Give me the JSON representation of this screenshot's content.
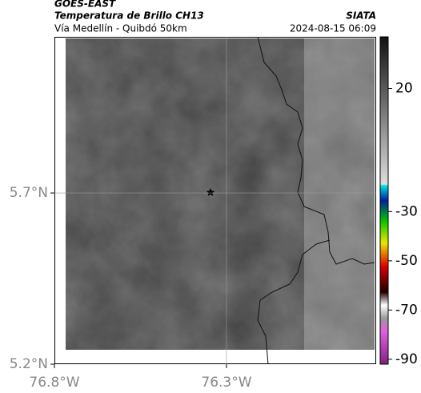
{
  "header": {
    "title": "GOES-EAST",
    "subtitle": "Temperatura de Brillo CH13",
    "region": "Vía Medellín - Quibdó 50km",
    "source": "SIATA",
    "datetime": "2024-08-15 06:09"
  },
  "map": {
    "lonlim": [
      -76.8,
      -75.865
    ],
    "latlim": [
      5.2,
      6.156
    ],
    "lon_ticks": [
      {
        "value": -76.8,
        "label": "76.8°W"
      },
      {
        "value": -76.3,
        "label": "76.3°W"
      }
    ],
    "lat_ticks": [
      {
        "value": 5.2,
        "label": "5.2°N"
      },
      {
        "value": 5.7,
        "label": "5.7°N"
      }
    ],
    "grid": true
  },
  "colorbar": {
    "lim": [
      -92,
      41
    ],
    "ticks": [
      20,
      -30,
      -50,
      -70,
      -90
    ]
  }
}
